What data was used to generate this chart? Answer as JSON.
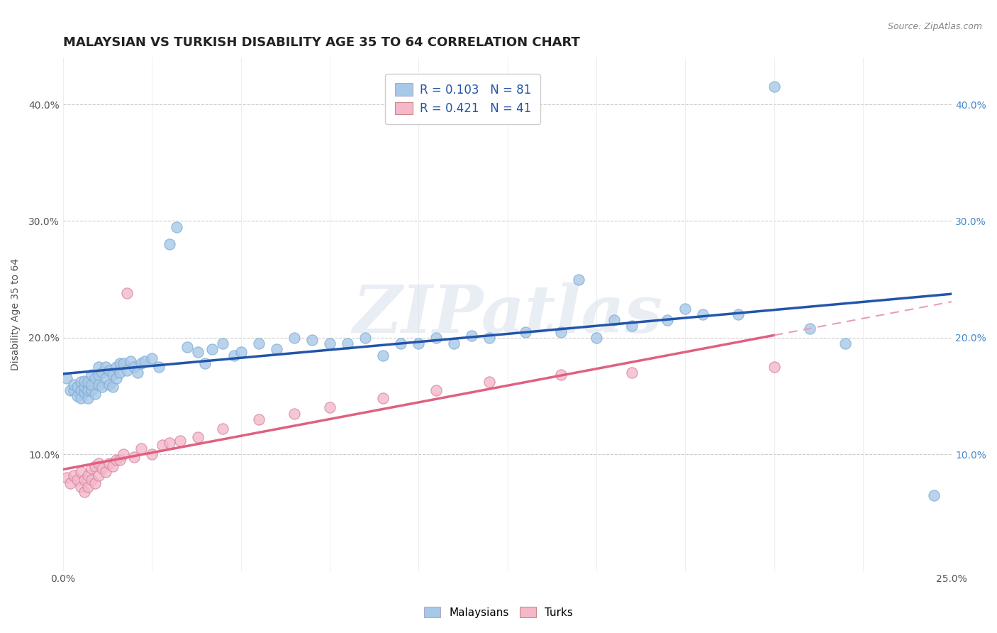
{
  "title": "MALAYSIAN VS TURKISH DISABILITY AGE 35 TO 64 CORRELATION CHART",
  "source": "Source: ZipAtlas.com",
  "ylabel": "Disability Age 35 to 64",
  "xlim": [
    0.0,
    0.25
  ],
  "ylim": [
    0.0,
    0.44
  ],
  "xticks": [
    0.0,
    0.025,
    0.05,
    0.075,
    0.1,
    0.125,
    0.15,
    0.175,
    0.2,
    0.225,
    0.25
  ],
  "xtick_labels": [
    "0.0%",
    "",
    "",
    "",
    "",
    "",
    "",
    "",
    "",
    "",
    "25.0%"
  ],
  "yticks": [
    0.0,
    0.1,
    0.2,
    0.3,
    0.4
  ],
  "ytick_labels_left": [
    "",
    "10.0%",
    "20.0%",
    "30.0%",
    "40.0%"
  ],
  "ytick_labels_right": [
    "",
    "10.0%",
    "20.0%",
    "30.0%",
    "40.0%"
  ],
  "legend_r1": "R = 0.103   N = 81",
  "legend_r2": "R = 0.421   N = 41",
  "blue_color": "#a8c8e8",
  "pink_color": "#f4b8c8",
  "blue_line_color": "#2255aa",
  "pink_line_color": "#e06080",
  "pink_dash_color": "#e8a0b0",
  "watermark": "ZIPatlas",
  "bg_color": "#ffffff",
  "grid_color": "#cccccc",
  "title_fontsize": 13,
  "axis_fontsize": 10,
  "tick_fontsize": 10,
  "source_fontsize": 9,
  "malaysians_x": [
    0.001,
    0.002,
    0.003,
    0.003,
    0.004,
    0.004,
    0.005,
    0.005,
    0.005,
    0.006,
    0.006,
    0.006,
    0.007,
    0.007,
    0.007,
    0.008,
    0.008,
    0.008,
    0.009,
    0.009,
    0.01,
    0.01,
    0.01,
    0.011,
    0.011,
    0.012,
    0.012,
    0.013,
    0.013,
    0.014,
    0.014,
    0.015,
    0.015,
    0.016,
    0.016,
    0.017,
    0.018,
    0.019,
    0.02,
    0.021,
    0.022,
    0.023,
    0.025,
    0.027,
    0.03,
    0.032,
    0.035,
    0.038,
    0.04,
    0.042,
    0.045,
    0.048,
    0.05,
    0.055,
    0.06,
    0.065,
    0.07,
    0.075,
    0.08,
    0.085,
    0.09,
    0.095,
    0.1,
    0.105,
    0.11,
    0.115,
    0.12,
    0.13,
    0.14,
    0.145,
    0.15,
    0.155,
    0.16,
    0.17,
    0.175,
    0.18,
    0.19,
    0.2,
    0.21,
    0.22,
    0.245
  ],
  "malaysians_y": [
    0.165,
    0.155,
    0.155,
    0.16,
    0.15,
    0.158,
    0.155,
    0.148,
    0.162,
    0.153,
    0.158,
    0.163,
    0.148,
    0.155,
    0.162,
    0.155,
    0.16,
    0.168,
    0.152,
    0.165,
    0.16,
    0.168,
    0.175,
    0.158,
    0.17,
    0.165,
    0.175,
    0.16,
    0.172,
    0.158,
    0.168,
    0.165,
    0.175,
    0.17,
    0.178,
    0.178,
    0.172,
    0.18,
    0.175,
    0.17,
    0.178,
    0.18,
    0.182,
    0.175,
    0.28,
    0.295,
    0.192,
    0.188,
    0.178,
    0.19,
    0.195,
    0.185,
    0.188,
    0.195,
    0.19,
    0.2,
    0.198,
    0.195,
    0.195,
    0.2,
    0.185,
    0.195,
    0.195,
    0.2,
    0.195,
    0.202,
    0.2,
    0.205,
    0.205,
    0.25,
    0.2,
    0.215,
    0.21,
    0.215,
    0.225,
    0.22,
    0.22,
    0.415,
    0.208,
    0.195,
    0.065
  ],
  "turks_x": [
    0.001,
    0.002,
    0.003,
    0.004,
    0.005,
    0.005,
    0.006,
    0.006,
    0.007,
    0.007,
    0.008,
    0.008,
    0.009,
    0.009,
    0.01,
    0.01,
    0.011,
    0.012,
    0.013,
    0.014,
    0.015,
    0.016,
    0.017,
    0.018,
    0.02,
    0.022,
    0.025,
    0.028,
    0.03,
    0.033,
    0.038,
    0.045,
    0.055,
    0.065,
    0.075,
    0.09,
    0.105,
    0.12,
    0.14,
    0.16,
    0.2
  ],
  "turks_y": [
    0.08,
    0.075,
    0.082,
    0.078,
    0.072,
    0.085,
    0.068,
    0.078,
    0.072,
    0.082,
    0.078,
    0.088,
    0.075,
    0.09,
    0.082,
    0.092,
    0.088,
    0.085,
    0.092,
    0.09,
    0.095,
    0.095,
    0.1,
    0.238,
    0.098,
    0.105,
    0.1,
    0.108,
    0.11,
    0.112,
    0.115,
    0.122,
    0.13,
    0.135,
    0.14,
    0.148,
    0.155,
    0.162,
    0.168,
    0.17,
    0.175
  ]
}
